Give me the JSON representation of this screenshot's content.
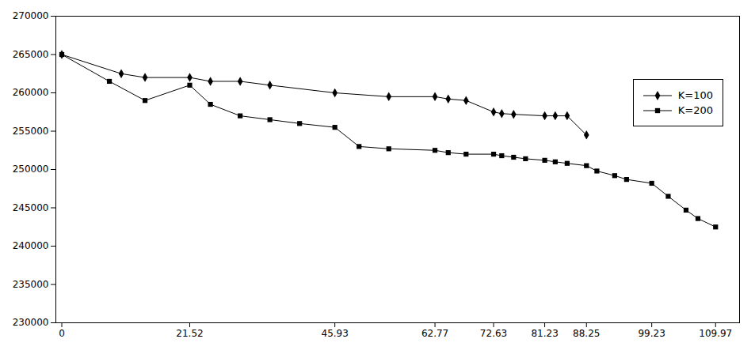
{
  "chart_data": {
    "type": "line",
    "series": [
      {
        "name": "K=100",
        "color": "#000000",
        "marker": "diamond",
        "x": [
          0,
          10,
          14,
          21.52,
          25,
          30,
          35,
          45.93,
          55,
          62.77,
          65,
          68,
          72.63,
          74,
          76,
          81.23,
          83,
          85,
          88.25
        ],
        "values": [
          265000,
          262500,
          262000,
          262000,
          261500,
          261500,
          261000,
          260000,
          259500,
          259500,
          259200,
          259000,
          257500,
          257300,
          257200,
          257000,
          257000,
          257000,
          254500
        ]
      },
      {
        "name": "K=200",
        "color": "#000000",
        "marker": "square",
        "x": [
          0,
          8,
          14,
          21.52,
          25,
          30,
          35,
          40,
          45.93,
          50,
          55,
          62.77,
          65,
          68,
          72.63,
          74,
          76,
          78,
          81.23,
          83,
          85,
          88.25,
          90,
          93,
          95,
          99.23,
          102,
          105,
          107,
          109.97
        ],
        "values": [
          265000,
          261500,
          259000,
          261000,
          258500,
          257000,
          256500,
          256000,
          255500,
          253000,
          252700,
          252500,
          252200,
          252000,
          252000,
          251800,
          251600,
          251400,
          251200,
          251000,
          250800,
          250500,
          249800,
          249200,
          248700,
          248200,
          246500,
          244700,
          243600,
          242500
        ]
      }
    ],
    "xlim": [
      -1,
      114
    ],
    "xticks": [
      0,
      21.52,
      45.93,
      62.77,
      72.63,
      81.23,
      88.25,
      99.23,
      109.97
    ],
    "ylim": [
      230000,
      270000
    ],
    "yticks": [
      230000,
      235000,
      240000,
      245000,
      250000,
      255000,
      260000,
      265000,
      270000
    ],
    "grid": false,
    "legend": "right"
  }
}
